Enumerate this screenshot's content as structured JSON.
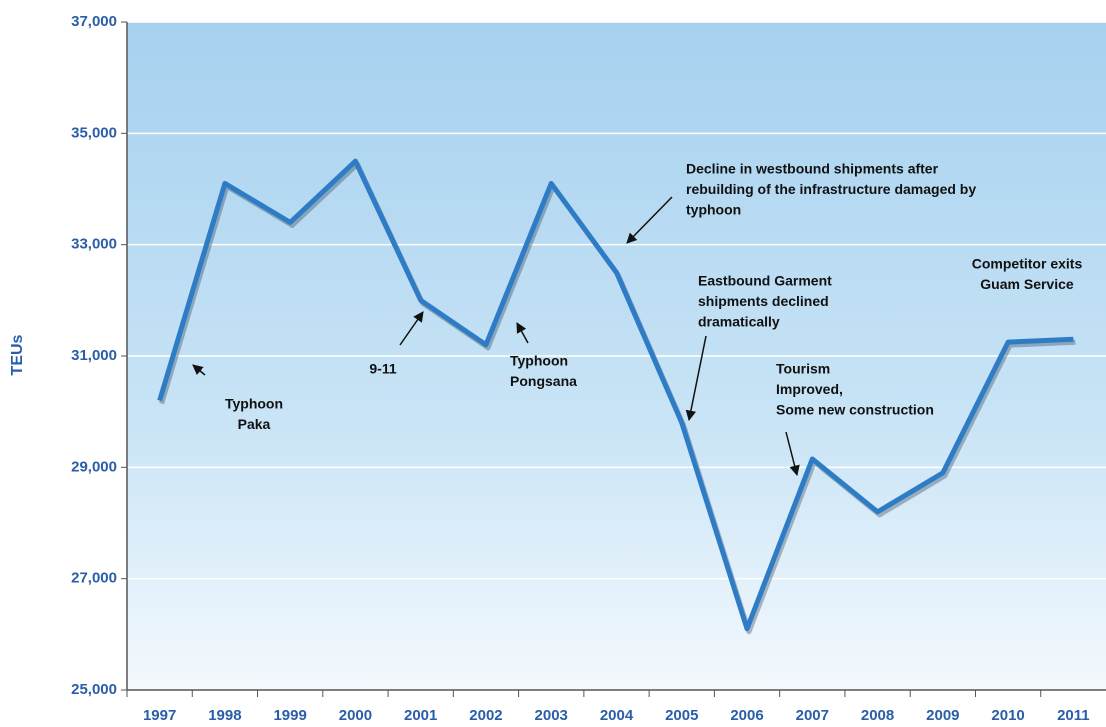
{
  "chart_data": {
    "type": "line",
    "y_label": "TEUs",
    "categories": [
      "1997",
      "1998",
      "1999",
      "2000",
      "2001",
      "2002",
      "2003",
      "2004",
      "2005",
      "2006",
      "2007",
      "2008",
      "2009",
      "2010",
      "2011"
    ],
    "series": [
      {
        "name": "TEUs",
        "color": "#2f7cc6",
        "values": [
          30200,
          34100,
          33400,
          34500,
          32000,
          31200,
          34100,
          32500,
          29800,
          26100,
          29150,
          28200,
          28900,
          31250,
          31300
        ]
      }
    ],
    "ylim": [
      25000,
      37000
    ],
    "yticks": [
      {
        "value": 25000,
        "label": "25,000"
      },
      {
        "value": 27000,
        "label": "27,000"
      },
      {
        "value": 29000,
        "label": "29,000"
      },
      {
        "value": 31000,
        "label": "31,000"
      },
      {
        "value": 33000,
        "label": "33,000"
      },
      {
        "value": 35000,
        "label": "35,000"
      },
      {
        "value": 37000,
        "label": "37,000"
      }
    ],
    "grid": true,
    "annotations": [
      {
        "lines": [
          "Typhoon",
          "Paka"
        ]
      },
      {
        "lines": [
          "9-11"
        ]
      },
      {
        "lines": [
          "Typhoon",
          "Pongsana"
        ]
      },
      {
        "lines": [
          "Decline in westbound shipments after",
          "rebuilding of the infrastructure damaged by",
          "typhoon"
        ]
      },
      {
        "lines": [
          "Eastbound Garment",
          "shipments declined",
          "dramatically"
        ]
      },
      {
        "lines": [
          "Tourism",
          "Improved,",
          "Some new construction"
        ]
      },
      {
        "lines": [
          "Competitor exits",
          "Guam Service"
        ]
      }
    ]
  }
}
